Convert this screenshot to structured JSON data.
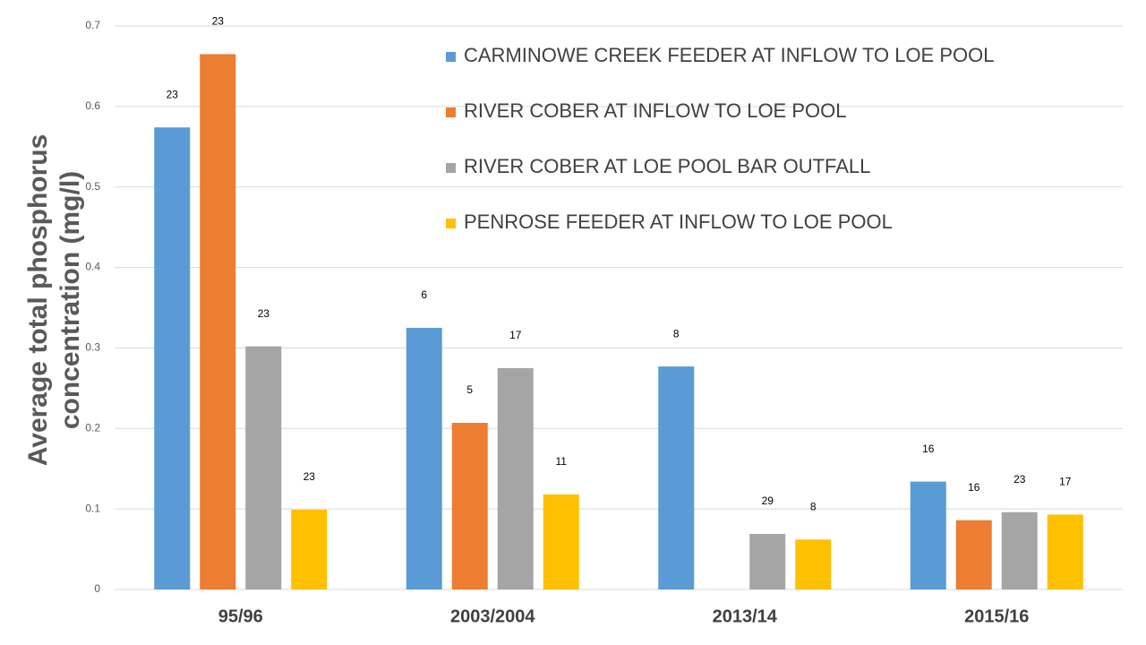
{
  "chart_data": {
    "type": "bar",
    "y_label": [
      "Average total phosphorus",
      "concentration (mg/l)"
    ],
    "categories": [
      "95/96",
      "2003/2004",
      "2013/14",
      "2015/16"
    ],
    "series": [
      {
        "name": "CARMINOWE CREEK FEEDER AT INFLOW TO LOE POOL",
        "color": "#5b9bd5",
        "values": [
          0.574,
          0.325,
          0.277,
          0.134
        ],
        "sample_counts": [
          23,
          6,
          8,
          16
        ]
      },
      {
        "name": "RIVER COBER AT INFLOW TO LOE POOL",
        "color": "#ed7d31",
        "values": [
          0.665,
          0.207,
          null,
          0.086
        ],
        "sample_counts": [
          23,
          5,
          null,
          16
        ]
      },
      {
        "name": "RIVER COBER AT LOE POOL BAR OUTFALL",
        "color": "#a5a5a5",
        "values": [
          0.302,
          0.275,
          0.069,
          0.096
        ],
        "sample_counts": [
          23,
          17,
          29,
          23
        ]
      },
      {
        "name": "PENROSE FEEDER AT INFLOW TO LOE POOL",
        "color": "#ffc000",
        "values": [
          0.099,
          0.118,
          0.062,
          0.093
        ],
        "sample_counts": [
          23,
          11,
          8,
          17
        ]
      }
    ],
    "ylim": [
      0,
      0.7
    ],
    "yticks": [
      0,
      0.1,
      0.2,
      0.3,
      0.4,
      0.5,
      0.6,
      0.7
    ],
    "grid": true,
    "legend": "top-right"
  }
}
